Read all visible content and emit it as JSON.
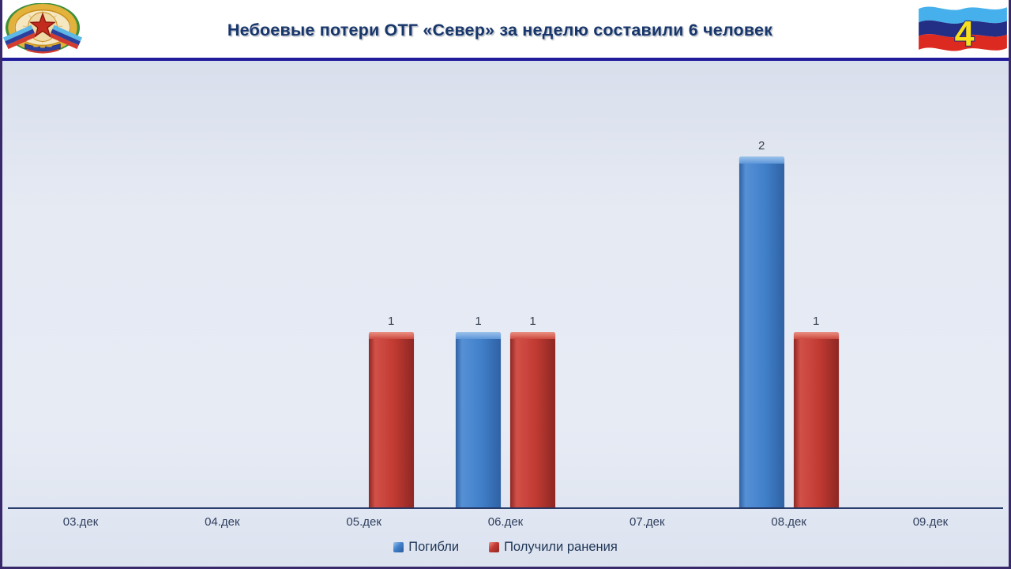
{
  "header": {
    "title": "Небоевые потери ОТГ «Север» за неделю составили 6 человек",
    "page_number": "4",
    "title_color": "#17366B",
    "emblem_icon": "lnr-coat-of-arms",
    "flag_icon": "lnr-flag"
  },
  "chart_data": {
    "type": "bar",
    "categories": [
      "03.дек",
      "04.дек",
      "05.дек",
      "06.дек",
      "07.дек",
      "08.дек",
      "09.дек"
    ],
    "series": [
      {
        "name": "Погибли",
        "color": "#4181CB",
        "values": [
          0,
          0,
          0,
          1,
          0,
          2,
          0
        ]
      },
      {
        "name": "Получили ранения",
        "color": "#C23B33",
        "values": [
          0,
          0,
          1,
          1,
          0,
          1,
          0
        ]
      }
    ],
    "title": "",
    "xlabel": "",
    "ylabel": "",
    "ylim": [
      0,
      2
    ],
    "grid": false,
    "data_labels": true,
    "legend_position": "bottom",
    "axis_color": "#2A3F6E",
    "plot_background": "#E7EBF4"
  }
}
